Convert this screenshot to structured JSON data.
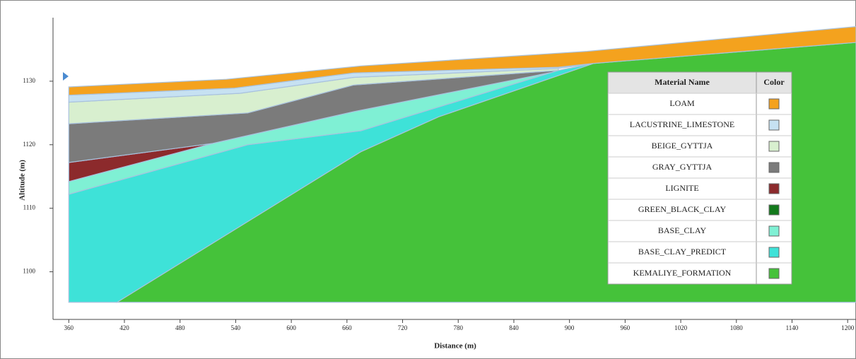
{
  "chart_data": {
    "type": "section",
    "xlabel": "Distance (m)",
    "ylabel": "Altitude (m)",
    "xlim": [
      343,
      1209
    ],
    "ylim": [
      1092.5,
      1140
    ],
    "xticks": [
      360,
      420,
      480,
      540,
      600,
      660,
      720,
      780,
      840,
      900,
      960,
      1020,
      1080,
      1140,
      1200
    ],
    "yticks": [
      1100,
      1110,
      1120,
      1130
    ],
    "legend_header": [
      "Material Name",
      "Color"
    ],
    "series": [
      {
        "name": "LOAM",
        "color": "#f4a21e",
        "x": [
          360,
          530,
          675,
          919,
          1209,
          1209,
          926,
          888,
          667,
          538,
          360
        ],
        "y": [
          1129.1,
          1130.3,
          1132.4,
          1134.7,
          1138.6,
          1136.1,
          1132.8,
          1132.2,
          1131.3,
          1128.9,
          1127.8
        ]
      },
      {
        "name": "LACUSTRINE_LIMESTONE",
        "color": "#c6e1f2",
        "x": [
          360,
          538,
          667,
          888,
          926,
          888,
          667,
          545,
          360
        ],
        "y": [
          1127.8,
          1128.9,
          1131.3,
          1132.2,
          1132.8,
          1132,
          1130.6,
          1128.1,
          1126.7
        ]
      },
      {
        "name": "BEIGE_GYTTJA",
        "color": "#d8efcf",
        "x": [
          360,
          545,
          667,
          888,
          888,
          667,
          553,
          360
        ],
        "y": [
          1126.7,
          1128.1,
          1130.6,
          1132,
          1131.7,
          1129.4,
          1125,
          1123.3
        ]
      },
      {
        "name": "GRAY_GYTTJA",
        "color": "#7b7b7b",
        "x": [
          360,
          553,
          667,
          888,
          881,
          667,
          515,
          360
        ],
        "y": [
          1123.3,
          1125,
          1129.4,
          1131.7,
          1131.4,
          1125.2,
          1120.2,
          1117.2
        ]
      },
      {
        "name": "LIGNITE",
        "color": "#8c2a2c",
        "x": [
          360,
          515,
          360
        ],
        "y": [
          1117.2,
          1120.2,
          1114.2
        ]
      },
      {
        "name": "GREEN_BLACK_CLAY",
        "color": "#137a1c"
      },
      {
        "name": "BASE_CLAY",
        "color": "#7ff0d4",
        "x": [
          360,
          515,
          667,
          888,
          675,
          553,
          360
        ],
        "y": [
          1114.2,
          1120.2,
          1125.2,
          1131.7,
          1122.2,
          1120,
          1112.2
        ]
      },
      {
        "name": "BASE_CLAY_PREDICT",
        "color": "#3ee2d8",
        "x": [
          360,
          553,
          675,
          888,
          926,
          759,
          675,
          412,
          360
        ],
        "y": [
          1112.2,
          1120,
          1122.2,
          1131.7,
          1132.8,
          1124.4,
          1118.9,
          1095.2,
          1095.2
        ]
      },
      {
        "name": "KEMALIYE_FORMATION",
        "color": "#45c23a",
        "x": [
          412,
          675,
          759,
          926,
          1209,
          1209
        ],
        "y": [
          1095.2,
          1118.9,
          1124.4,
          1132.8,
          1136.1,
          1095.2
        ]
      }
    ]
  }
}
